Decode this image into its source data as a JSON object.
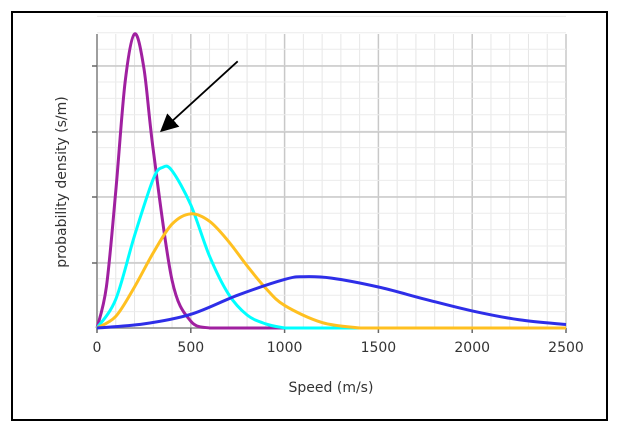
{
  "chart_data": {
    "type": "line",
    "title": "",
    "xlabel": "Speed (m/s)",
    "ylabel": "probability density (s/m)",
    "xlim": [
      0,
      2500
    ],
    "ylim": [
      0,
      4.3
    ],
    "xticks": [
      0,
      500,
      1000,
      1500,
      2000,
      2500
    ],
    "xtick_labels": [
      "0",
      "500",
      "1000",
      "1500",
      "2000",
      "2500"
    ],
    "grid": true,
    "legend": "none",
    "series": [
      {
        "color": "#a020a0",
        "peak_speed": 200,
        "peak_density": 4.3,
        "x": [
          0,
          50,
          100,
          150,
          200,
          250,
          300,
          400,
          500,
          600
        ],
        "y": [
          0.0,
          0.6,
          2.0,
          3.6,
          4.3,
          3.8,
          2.6,
          0.7,
          0.1,
          0.0
        ]
      },
      {
        "color": "#00ffff",
        "peak_speed": 350,
        "peak_density": 2.35,
        "x": [
          0,
          100,
          200,
          300,
          350,
          400,
          500,
          600,
          700,
          800,
          900,
          1000
        ],
        "y": [
          0.0,
          0.42,
          1.35,
          2.18,
          2.35,
          2.3,
          1.8,
          1.05,
          0.5,
          0.19,
          0.06,
          0.0
        ]
      },
      {
        "color": "#ffc020",
        "peak_speed": 500,
        "peak_density": 1.67,
        "x": [
          0,
          100,
          200,
          300,
          400,
          500,
          600,
          700,
          800,
          900,
          1000,
          1200,
          1400
        ],
        "y": [
          0.0,
          0.17,
          0.6,
          1.1,
          1.52,
          1.67,
          1.56,
          1.27,
          0.91,
          0.58,
          0.33,
          0.08,
          0.0
        ]
      },
      {
        "color": "#2e2ee8",
        "peak_speed": 1100,
        "peak_density": 0.75,
        "x": [
          0,
          250,
          500,
          750,
          1000,
          1100,
          1250,
          1500,
          1750,
          2000,
          2250,
          2500
        ],
        "y": [
          0.0,
          0.06,
          0.2,
          0.48,
          0.71,
          0.75,
          0.73,
          0.6,
          0.42,
          0.25,
          0.12,
          0.05
        ]
      }
    ],
    "annotations": [
      {
        "type": "arrow",
        "from": [
          750,
          3.9
        ],
        "to": [
          350,
          2.9
        ]
      }
    ]
  }
}
